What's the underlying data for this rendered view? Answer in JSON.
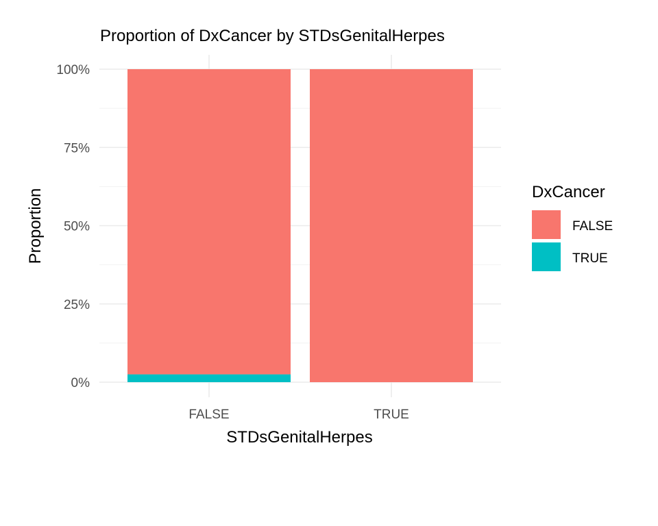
{
  "chart_data": {
    "type": "bar",
    "stacked": true,
    "title": "Proportion of DxCancer by STDsGenitalHerpes",
    "xlabel": "STDsGenitalHerpes",
    "ylabel": "Proportion",
    "categories": [
      "FALSE",
      "TRUE"
    ],
    "series": [
      {
        "name": "FALSE",
        "color": "#F8766D",
        "values": [
          0.975,
          1.0
        ]
      },
      {
        "name": "TRUE",
        "color": "#00BFC4",
        "values": [
          0.025,
          0.0
        ]
      }
    ],
    "ylim": [
      0,
      1
    ],
    "yticks": [
      0,
      0.25,
      0.5,
      0.75,
      1.0
    ],
    "ytick_labels": [
      "0%",
      "25%",
      "50%",
      "75%",
      "100%"
    ],
    "legend_title": "DxCancer",
    "legend_position": "right",
    "grid": true
  }
}
